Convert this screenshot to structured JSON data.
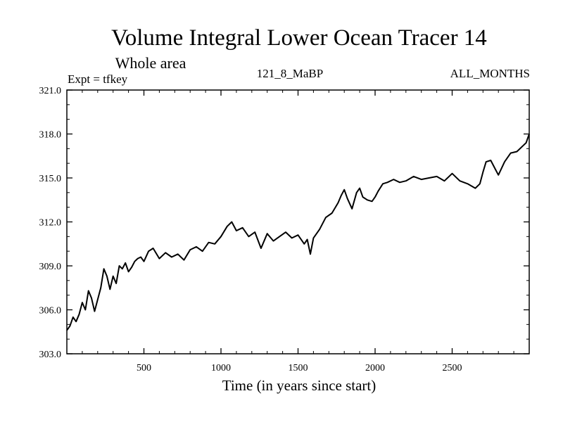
{
  "chart_data": {
    "type": "line",
    "title": "Volume Integral Lower Ocean Tracer 14",
    "subtitle": "Whole area",
    "experiment_label": "Expt = tfkey",
    "center_label": "121_8_MaBP",
    "right_label": "ALL_MONTHS",
    "xlabel": "Time (in years since start)",
    "ylabel": "",
    "xlim": [
      0,
      3000
    ],
    "ylim": [
      303.0,
      321.0
    ],
    "xticks": [
      500,
      1000,
      1500,
      2000,
      2500
    ],
    "xtick_labels": [
      "500",
      "1000",
      "1500",
      "2000",
      "2500"
    ],
    "yticks": [
      303.0,
      306.0,
      309.0,
      312.0,
      315.0,
      318.0,
      321.0
    ],
    "ytick_labels": [
      "303.0",
      "306.0",
      "309.0",
      "312.0",
      "315.0",
      "318.0",
      "321.0"
    ],
    "grid": false,
    "line_color": "#000000",
    "series": [
      {
        "x": [
          0,
          20,
          40,
          60,
          80,
          100,
          120,
          140,
          160,
          180,
          200,
          220,
          240,
          260,
          280,
          300,
          320,
          340,
          360,
          380,
          400,
          420,
          440,
          460,
          480,
          500,
          530,
          560,
          600,
          640,
          680,
          720,
          760,
          800,
          840,
          880,
          920,
          960,
          1000,
          1040,
          1070,
          1100,
          1140,
          1180,
          1220,
          1260,
          1300,
          1340,
          1380,
          1420,
          1460,
          1500,
          1540,
          1560,
          1580,
          1600,
          1640,
          1680,
          1720,
          1760,
          1780,
          1800,
          1820,
          1850,
          1880,
          1900,
          1920,
          1950,
          1980,
          2000,
          2020,
          2050,
          2080,
          2120,
          2160,
          2200,
          2250,
          2300,
          2350,
          2400,
          2450,
          2500,
          2550,
          2600,
          2650,
          2680,
          2700,
          2720,
          2750,
          2780,
          2800,
          2840,
          2880,
          2920,
          2960,
          2980,
          3000
        ],
        "y": [
          304.6,
          304.9,
          305.5,
          305.2,
          305.7,
          306.5,
          306.0,
          307.3,
          306.8,
          305.9,
          306.7,
          307.5,
          308.8,
          308.3,
          307.4,
          308.3,
          307.8,
          309.0,
          308.8,
          309.2,
          308.6,
          308.9,
          309.3,
          309.5,
          309.6,
          309.3,
          310.0,
          310.2,
          309.5,
          309.9,
          309.6,
          309.8,
          309.4,
          310.1,
          310.3,
          310.0,
          310.6,
          310.5,
          311.0,
          311.7,
          312.0,
          311.4,
          311.6,
          311.0,
          311.3,
          310.2,
          311.2,
          310.7,
          311.0,
          311.3,
          310.9,
          311.1,
          310.5,
          310.8,
          309.8,
          310.9,
          311.5,
          312.3,
          312.6,
          313.3,
          313.8,
          314.2,
          313.6,
          312.9,
          314.0,
          314.3,
          313.7,
          313.5,
          313.4,
          313.7,
          314.1,
          314.6,
          314.7,
          314.9,
          314.7,
          314.8,
          315.1,
          314.9,
          315.0,
          315.1,
          314.8,
          315.3,
          314.8,
          314.6,
          314.3,
          314.6,
          315.4,
          316.1,
          316.2,
          315.6,
          315.2,
          316.1,
          316.7,
          316.8,
          317.2,
          317.4,
          318.0
        ]
      }
    ]
  }
}
